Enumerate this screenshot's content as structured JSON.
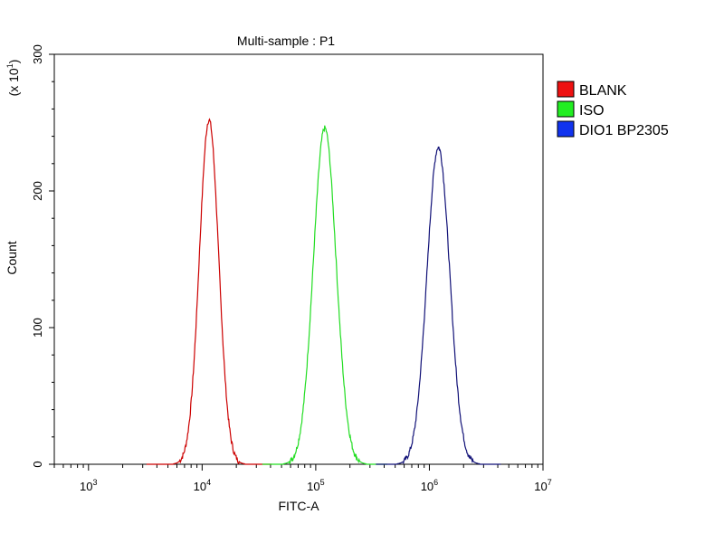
{
  "chart_data": {
    "type": "line",
    "title": "Multi-sample : P1",
    "xlabel": "FITC-A",
    "ylabel": "Count",
    "y_multiplier_label": "(x 10",
    "y_multiplier_exp": "1",
    "x_scale": "log",
    "xlim": [
      500,
      10000000
    ],
    "ylim": [
      0,
      300
    ],
    "x_ticks": [
      {
        "value": 1000,
        "base": "10",
        "exp": "3"
      },
      {
        "value": 10000,
        "base": "10",
        "exp": "4"
      },
      {
        "value": 100000,
        "base": "10",
        "exp": "5"
      },
      {
        "value": 1000000,
        "base": "10",
        "exp": "6"
      },
      {
        "value": 10000000,
        "base": "10",
        "exp": "7"
      }
    ],
    "y_ticks": [
      {
        "value": 0,
        "label": "0"
      },
      {
        "value": 100,
        "label": "100"
      },
      {
        "value": 200,
        "label": "200"
      },
      {
        "value": 300,
        "label": "300"
      }
    ],
    "legend_position": "right",
    "series": [
      {
        "name": "BLANK",
        "color": "#cc0000",
        "legend_color": "#ee1111",
        "peak_x": 11500,
        "peak_y": 252,
        "sigma_log": 0.085
      },
      {
        "name": "ISO",
        "color": "#22dd22",
        "legend_color": "#22ee22",
        "peak_x": 120000,
        "peak_y": 246,
        "sigma_log": 0.1
      },
      {
        "name": "DIO1 BP2305",
        "color": "#111177",
        "legend_color": "#1133ee",
        "peak_x": 1200000,
        "peak_y": 232,
        "sigma_log": 0.1
      }
    ]
  }
}
